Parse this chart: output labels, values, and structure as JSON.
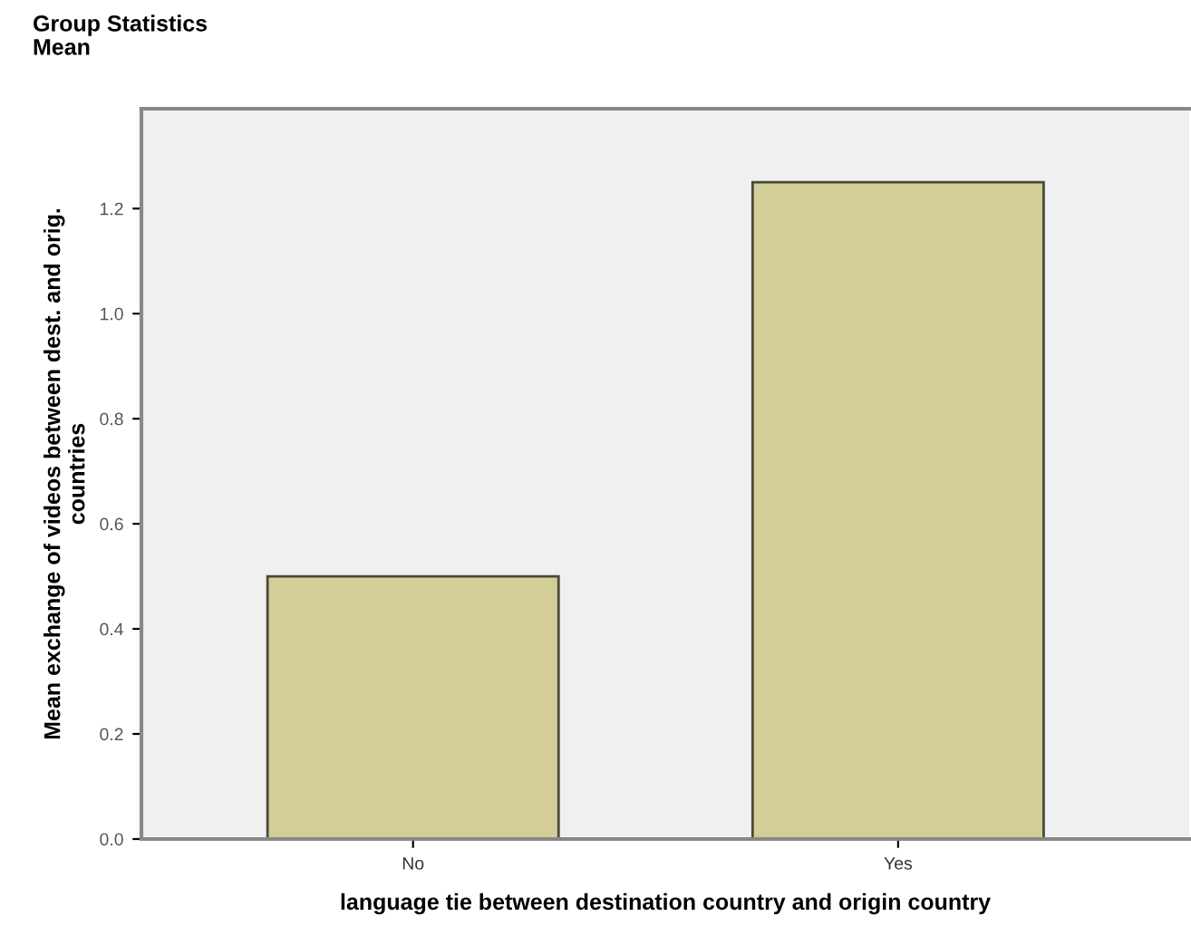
{
  "chart_data": {
    "type": "bar",
    "title": "Group Statistics",
    "subtitle": "Mean",
    "xlabel": "language tie between destination country and origin country",
    "ylabel": "Mean exchange of videos between dest. and orig.\ncountries",
    "categories": [
      "No",
      "Yes"
    ],
    "values": [
      0.5,
      1.25
    ],
    "color": "#d3cd97",
    "ylim": [
      0,
      1.39
    ],
    "yticks": [
      {
        "value": 0,
        "label": "0.0"
      },
      0.2,
      0.4,
      0.6,
      0.8,
      {
        "value": 1,
        "label": "1.0"
      },
      1.2
    ],
    "grid": false,
    "legend": false
  }
}
